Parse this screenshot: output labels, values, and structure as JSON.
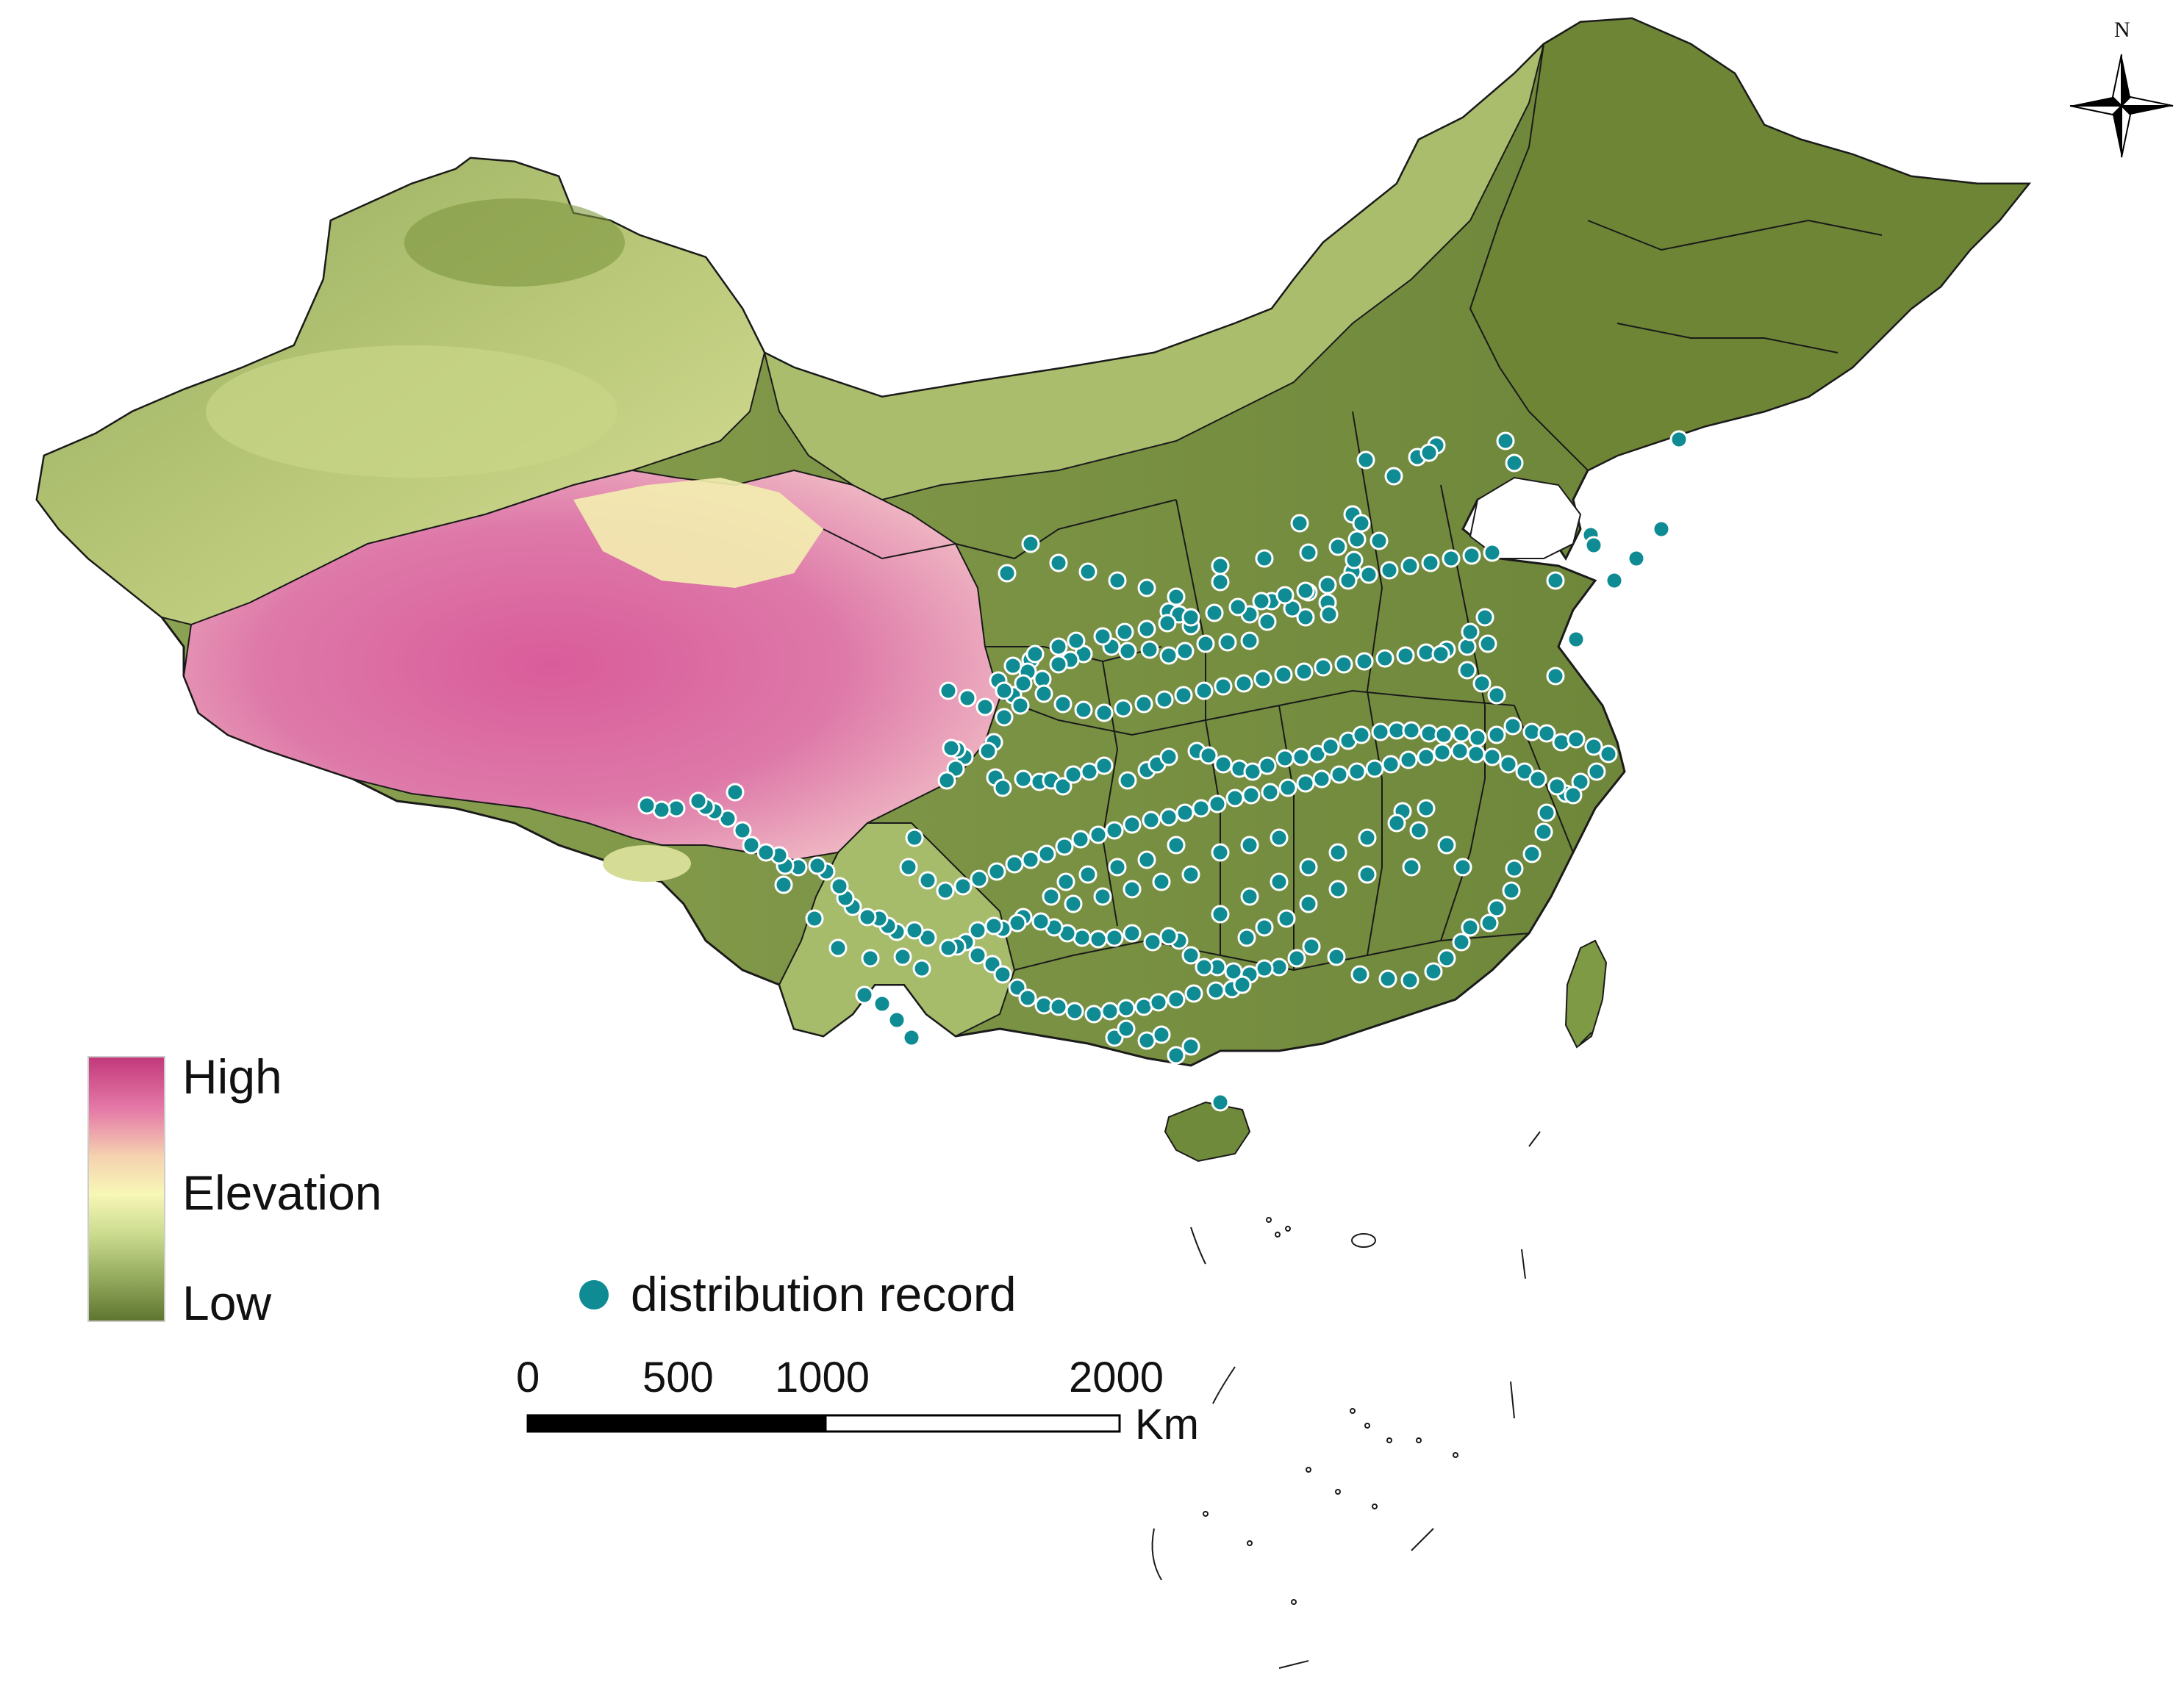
{
  "legend": {
    "elevation_high": "High",
    "elevation_title": "Elevation",
    "elevation_low": "Low",
    "elevation_colors": [
      "#c2387a",
      "#e57aa8",
      "#f5d3b0",
      "#f7f7b6",
      "#c8d98c",
      "#93a95c",
      "#5e7530"
    ],
    "record_label": "distribution record",
    "record_color": "#0e8b93"
  },
  "scale_bar": {
    "ticks": [
      "0",
      "500",
      "1000",
      "2000"
    ],
    "unit": "Km"
  },
  "north_arrow": {
    "label": "N"
  },
  "colors": {
    "lowland": "#6f8a3a",
    "midland": "#a3b964",
    "highland": "#d65a97",
    "plateau_light": "#f2efae",
    "border": "#1a1a1a"
  }
}
